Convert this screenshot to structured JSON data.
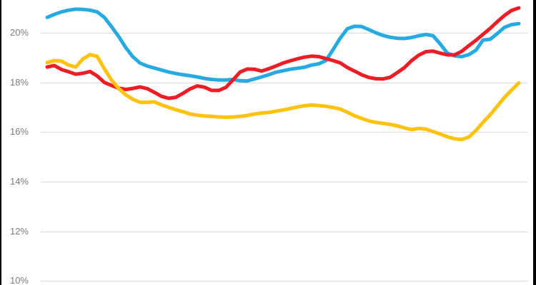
{
  "chart_data": {
    "type": "line",
    "title": "",
    "grid": "horizontal",
    "legend_position": "none",
    "x_axis": {
      "tick_labels": []
    },
    "y_axis": {
      "tick_labels": [
        "20%",
        "18%",
        "16%",
        "14%",
        "12%",
        "10%"
      ],
      "tick_values": [
        20,
        18,
        16,
        14,
        12,
        10
      ],
      "unit": "%",
      "ylim": [
        9.8,
        21.3
      ]
    },
    "series": [
      {
        "name": "blue",
        "color": "#27AAE1",
        "values": [
          20.62,
          20.74,
          20.84,
          20.91,
          20.95,
          20.94,
          20.91,
          20.84,
          20.62,
          20.25,
          19.85,
          19.4,
          19.03,
          18.78,
          18.66,
          18.58,
          18.5,
          18.42,
          18.36,
          18.31,
          18.27,
          18.22,
          18.16,
          18.12,
          18.1,
          18.1,
          18.12,
          18.07,
          18.06,
          18.14,
          18.22,
          18.31,
          18.41,
          18.47,
          18.53,
          18.57,
          18.61,
          18.7,
          18.75,
          18.88,
          19.32,
          19.78,
          20.16,
          20.26,
          20.25,
          20.13,
          20.0,
          19.89,
          19.82,
          19.78,
          19.77,
          19.81,
          19.88,
          19.93,
          19.88,
          19.55,
          19.18,
          19.07,
          19.04,
          19.12,
          19.3,
          19.71,
          19.74,
          19.97,
          20.22,
          20.33,
          20.37
        ]
      },
      {
        "name": "red",
        "color": "#EE1C25",
        "values": [
          18.62,
          18.68,
          18.52,
          18.43,
          18.33,
          18.37,
          18.44,
          18.26,
          18.0,
          17.88,
          17.77,
          17.72,
          17.76,
          17.82,
          17.75,
          17.6,
          17.44,
          17.36,
          17.4,
          17.56,
          17.74,
          17.86,
          17.81,
          17.68,
          17.68,
          17.8,
          18.1,
          18.42,
          18.54,
          18.53,
          18.46,
          18.55,
          18.66,
          18.78,
          18.87,
          18.95,
          19.02,
          19.06,
          19.04,
          18.96,
          18.88,
          18.79,
          18.6,
          18.46,
          18.31,
          18.2,
          18.15,
          18.14,
          18.21,
          18.4,
          18.6,
          18.88,
          19.1,
          19.24,
          19.26,
          19.18,
          19.11,
          19.11,
          19.25,
          19.48,
          19.7,
          19.94,
          20.18,
          20.45,
          20.7,
          20.9,
          21.0
        ]
      },
      {
        "name": "yellow",
        "color": "#FFC20E",
        "values": [
          18.8,
          18.88,
          18.86,
          18.7,
          18.62,
          18.95,
          19.12,
          19.05,
          18.55,
          18.1,
          17.76,
          17.5,
          17.32,
          17.2,
          17.2,
          17.22,
          17.1,
          17.0,
          16.9,
          16.82,
          16.73,
          16.68,
          16.65,
          16.63,
          16.61,
          16.6,
          16.61,
          16.63,
          16.67,
          16.73,
          16.77,
          16.79,
          16.84,
          16.89,
          16.95,
          17.01,
          17.06,
          17.09,
          17.07,
          17.04,
          16.99,
          16.93,
          16.8,
          16.66,
          16.55,
          16.45,
          16.39,
          16.35,
          16.31,
          16.25,
          16.17,
          16.1,
          16.15,
          16.12,
          16.02,
          15.92,
          15.81,
          15.73,
          15.7,
          15.8,
          16.07,
          16.4,
          16.7,
          17.05,
          17.4,
          17.7,
          17.98
        ]
      }
    ]
  },
  "colors": {
    "background": "#FFFFFF",
    "gridline": "#D9D9D9",
    "tick_label": "#7B7B7B",
    "edge_border": "#000000"
  }
}
